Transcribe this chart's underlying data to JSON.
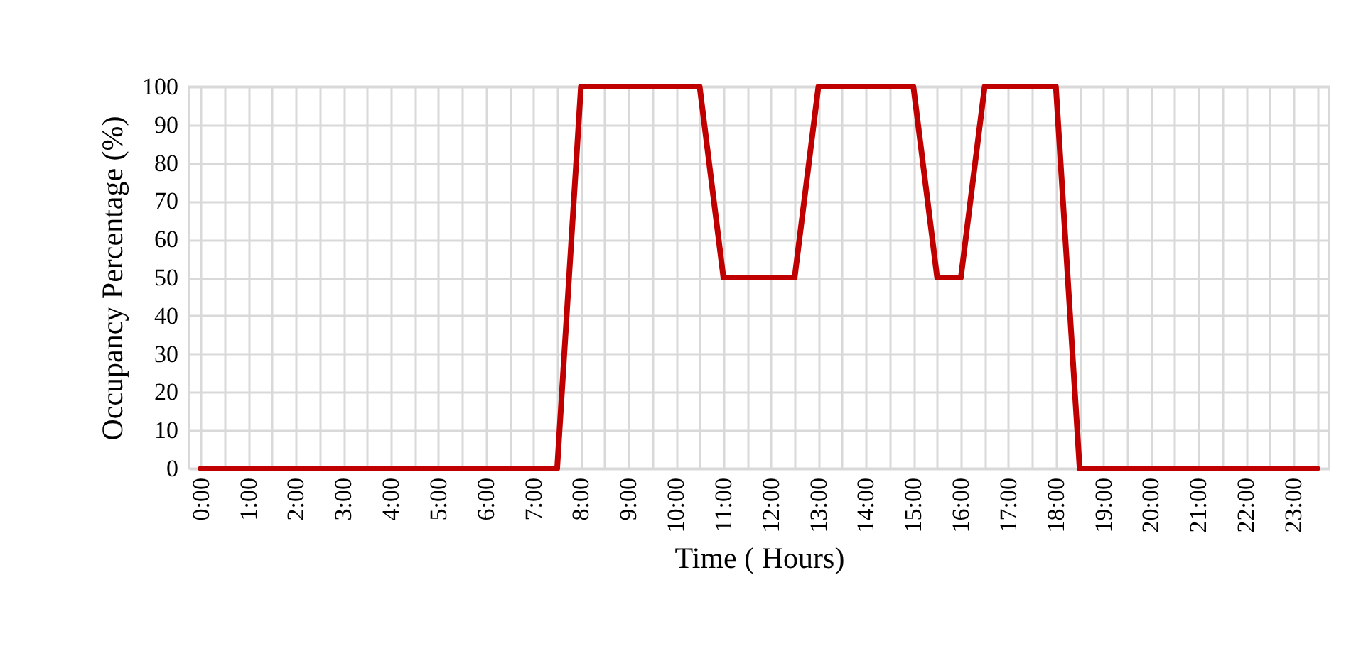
{
  "chart_data": {
    "type": "line",
    "xlabel": "Time ( Hours)",
    "ylabel": "Occupancy Percentage (%)",
    "categories": [
      "0:00",
      null,
      "1:00",
      null,
      "2:00",
      null,
      "3:00",
      null,
      "4:00",
      null,
      "5:00",
      null,
      "6:00",
      null,
      "7:00",
      null,
      "8:00",
      null,
      "9:00",
      null,
      "10:00",
      null,
      "11:00",
      null,
      "12:00",
      null,
      "13:00",
      null,
      "14:00",
      null,
      "15:00",
      null,
      "16:00",
      null,
      "17:00",
      null,
      "18:00",
      null,
      "19:00",
      null,
      "20:00",
      null,
      "21:00",
      null,
      "22:00",
      null,
      "23:00",
      null
    ],
    "series": [
      {
        "color": "#c00000",
        "values": [
          0,
          0,
          0,
          0,
          0,
          0,
          0,
          0,
          0,
          0,
          0,
          0,
          0,
          0,
          0,
          0,
          100,
          100,
          100,
          100,
          100,
          100,
          50,
          50,
          50,
          50,
          100,
          100,
          100,
          100,
          100,
          50,
          50,
          100,
          100,
          100,
          100,
          0,
          0,
          0,
          0,
          0,
          0,
          0,
          0,
          0,
          0,
          0
        ]
      }
    ],
    "ylim": [
      0,
      100
    ],
    "yticks": [
      0,
      10,
      20,
      30,
      40,
      50,
      60,
      70,
      80,
      90,
      100
    ],
    "grid": true
  }
}
